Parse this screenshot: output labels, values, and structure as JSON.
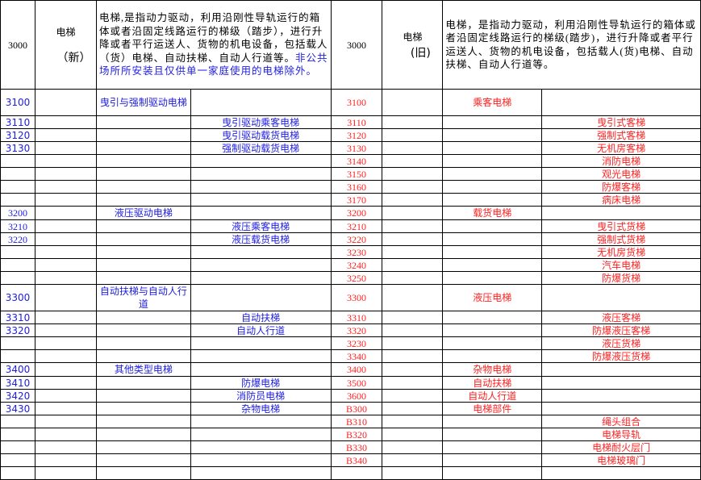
{
  "header": {
    "left_code": "3000",
    "left_name": "电梯",
    "left_tag": "（新）",
    "left_desc": "电梯,是指动力驱动，利用沿刚性导轨运行的箱体或者沿固定线路运行的梯级（踏步），进行升降或者平行运送人、货物的机电设备，包括载人（货）电梯、自动扶梯、自动人行道等。",
    "left_note": "非公共场所所安装且仅供单一家庭使用的电梯除外。",
    "right_code": "3000",
    "right_name": "电梯",
    "right_tag": "(旧)",
    "right_desc": "电梯，是指动力驱动，利用沿刚性导轨运行的箱体或者沿固定线路运行的梯级(踏步)，进行升降或者平行运送人、货物的机电设备，包括载人(货)电梯、自动扶梯、自动人行道等。"
  },
  "colors": {
    "new": "#2020e0",
    "old": "#ff2020"
  },
  "rows": [
    {
      "tall": true,
      "l_code": "3100",
      "l_cat": "曳引与强制驱动电梯",
      "l_sub": "",
      "r_code": "3100",
      "r_cat": "乘客电梯",
      "r_sub": ""
    },
    {
      "l_code": "3110",
      "l_cat": "",
      "l_sub": "曳引驱动乘客电梯",
      "r_code": "3110",
      "r_cat": "",
      "r_sub": "曳引式客梯"
    },
    {
      "l_code": "3120",
      "l_cat": "",
      "l_sub": "曳引驱动载货电梯",
      "r_code": "3120",
      "r_cat": "",
      "r_sub": "强制式客梯"
    },
    {
      "l_code": "3130",
      "l_cat": "",
      "l_sub": "强制驱动载货电梯",
      "r_code": "3130",
      "r_cat": "",
      "r_sub": "无机房客梯"
    },
    {
      "l_code": "",
      "l_cat": "",
      "l_sub": "",
      "r_code": "3140",
      "r_cat": "",
      "r_sub": "消防电梯"
    },
    {
      "l_code": "",
      "l_cat": "",
      "l_sub": "",
      "r_code": "3150",
      "r_cat": "",
      "r_sub": "观光电梯"
    },
    {
      "l_code": "",
      "l_cat": "",
      "l_sub": "",
      "r_code": "3160",
      "r_cat": "",
      "r_sub": "防爆客梯"
    },
    {
      "l_code": "",
      "l_cat": "",
      "l_sub": "",
      "r_code": "3170",
      "r_cat": "",
      "r_sub": "病床电梯"
    },
    {
      "serif": true,
      "l_code": "3200",
      "l_cat": "液压驱动电梯",
      "l_sub": "",
      "r_code": "3200",
      "r_cat": "载货电梯",
      "r_sub": ""
    },
    {
      "serif": true,
      "l_code": "3210",
      "l_cat": "",
      "l_sub": "液压乘客电梯",
      "r_code": "3210",
      "r_cat": "",
      "r_sub": "曳引式货梯"
    },
    {
      "serif": true,
      "l_code": "3220",
      "l_cat": "",
      "l_sub": "液压载货电梯",
      "r_code": "3220",
      "r_cat": "",
      "r_sub": "强制式货梯"
    },
    {
      "l_code": "",
      "l_cat": "",
      "l_sub": "",
      "r_code": "3230",
      "r_cat": "",
      "r_sub": "无机房货梯"
    },
    {
      "l_code": "",
      "l_cat": "",
      "l_sub": "",
      "r_code": "3240",
      "r_cat": "",
      "r_sub": "汽车电梯"
    },
    {
      "l_code": "",
      "l_cat": "",
      "l_sub": "",
      "r_code": "3250",
      "r_cat": "",
      "r_sub": "防爆货梯"
    },
    {
      "tall": true,
      "l_code": "3300",
      "l_cat": "自动扶梯与自动人行道",
      "l_sub": "",
      "r_code": "3300",
      "r_cat": "液压电梯",
      "r_sub": ""
    },
    {
      "l_code": "3310",
      "l_cat": "",
      "l_sub": "自动扶梯",
      "r_code": "3310",
      "r_cat": "",
      "r_sub": "液压客梯"
    },
    {
      "l_code": "3320",
      "l_cat": "",
      "l_sub": "自动人行道",
      "r_code": "3320",
      "r_cat": "",
      "r_sub": "防爆液压客梯"
    },
    {
      "l_code": "",
      "l_cat": "",
      "l_sub": "",
      "r_code": "3230",
      "r_cat": "",
      "r_sub": "液压货梯"
    },
    {
      "l_code": "",
      "l_cat": "",
      "l_sub": "",
      "r_code": "3340",
      "r_cat": "",
      "r_sub": "防爆液压货梯"
    },
    {
      "l_code": "3400",
      "l_cat": "其他类型电梯",
      "l_sub": "",
      "r_code": "3400",
      "r_cat": "杂物电梯",
      "r_sub": ""
    },
    {
      "l_code": "3410",
      "l_cat": "",
      "l_sub": "防爆电梯",
      "r_code": "3500",
      "r_cat": "自动扶梯",
      "r_sub": ""
    },
    {
      "l_code": "3420",
      "l_cat": "",
      "l_sub": "消防员电梯",
      "r_code": "3600",
      "r_cat": "自动人行道",
      "r_sub": ""
    },
    {
      "l_code": "3430",
      "l_cat": "",
      "l_sub": "杂物电梯",
      "r_code": "B300",
      "r_cat": "电梯部件",
      "r_sub": ""
    },
    {
      "l_code": "",
      "l_cat": "",
      "l_sub": "",
      "r_code": "B310",
      "r_cat": "",
      "r_sub": "绳头组合"
    },
    {
      "l_code": "",
      "l_cat": "",
      "l_sub": "",
      "r_code": "B320",
      "r_cat": "",
      "r_sub": "电梯导轨"
    },
    {
      "l_code": "",
      "l_cat": "",
      "l_sub": "",
      "r_code": "B330",
      "r_cat": "",
      "r_sub": "电梯耐火层门"
    },
    {
      "l_code": "",
      "l_cat": "",
      "l_sub": "",
      "r_code": "B340",
      "r_cat": "",
      "r_sub": "电梯玻璃门"
    },
    {
      "l_code": "",
      "l_cat": "",
      "l_sub": "",
      "r_code": "",
      "r_cat": "",
      "r_sub": ""
    }
  ]
}
